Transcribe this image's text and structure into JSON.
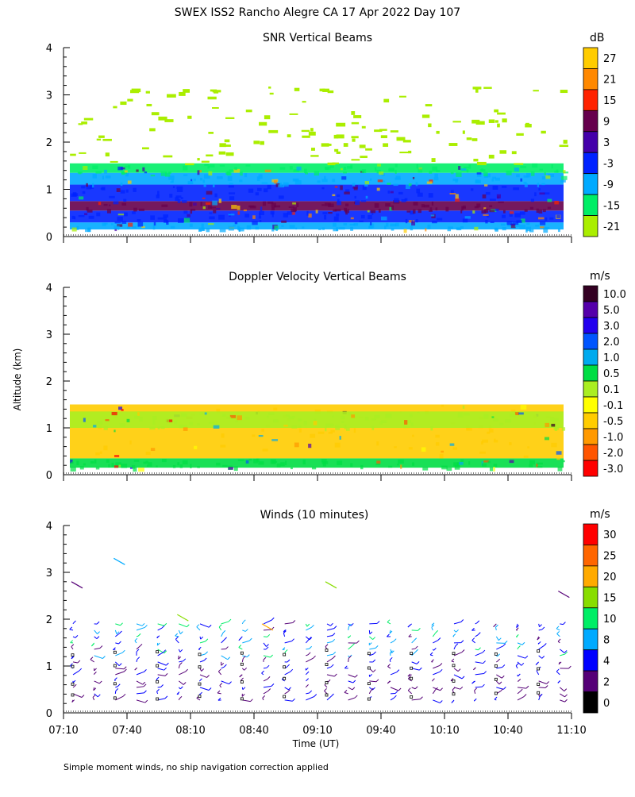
{
  "page_title": "SWEX ISS2 Rancho Alegre CA  17 Apr 2022 Day 107",
  "footnote": "Simple moment winds, no ship navigation correction applied",
  "shared_axes": {
    "ylabel": "Altitude (km)",
    "xlabel": "Time (UT)",
    "y_ticks": [
      "0",
      "1",
      "2",
      "3",
      "4"
    ],
    "x_ticks": [
      "07:10",
      "07:40",
      "08:10",
      "08:40",
      "09:10",
      "09:40",
      "10:10",
      "10:40",
      "11:10"
    ]
  },
  "chart_data": [
    {
      "type": "heatmap",
      "title": "SNR Vertical Beams",
      "ylim": [
        0,
        4
      ],
      "xlim": [
        "07:10",
        "11:10"
      ],
      "colorbar": {
        "unit": "dB",
        "labels": [
          "27",
          "21",
          "15",
          "9",
          "3",
          "-3",
          "-9",
          "-15",
          "-21"
        ],
        "colors": [
          "#ffcc00",
          "#ff8800",
          "#ff2200",
          "#66004d",
          "#4400aa",
          "#0022ff",
          "#00aaff",
          "#00ee66",
          "#aaee00"
        ]
      },
      "layers": [
        {
          "altitude_km": [
            0.15,
            0.3
          ],
          "snr_db": -9
        },
        {
          "altitude_km": [
            0.3,
            0.55
          ],
          "snr_db": -3
        },
        {
          "altitude_km": [
            0.55,
            0.75
          ],
          "snr_db": 9
        },
        {
          "altitude_km": [
            0.75,
            1.1
          ],
          "snr_db": -3
        },
        {
          "altitude_km": [
            1.1,
            1.35
          ],
          "snr_db": -9
        },
        {
          "altitude_km": [
            1.35,
            1.55
          ],
          "snr_db": -15
        },
        {
          "altitude_km": [
            1.55,
            3.2
          ],
          "snr_db": -21
        }
      ]
    },
    {
      "type": "heatmap",
      "title": "Doppler Velocity Vertical Beams",
      "ylim": [
        0,
        4
      ],
      "xlim": [
        "07:10",
        "11:10"
      ],
      "colorbar": {
        "unit": "m/s",
        "labels": [
          "10.0",
          "5.0",
          "3.0",
          "2.0",
          "1.0",
          "0.5",
          "0.1",
          "-0.1",
          "-0.5",
          "-1.0",
          "-2.0",
          "-3.0"
        ],
        "colors": [
          "#330022",
          "#5500aa",
          "#2200ee",
          "#0055ff",
          "#00aaee",
          "#00dd44",
          "#aaee22",
          "#ffff00",
          "#ffcc00",
          "#ff9900",
          "#ff5500",
          "#ff0000"
        ]
      },
      "layers": [
        {
          "altitude_km": [
            0.15,
            0.35
          ],
          "velocity_ms": 0.5
        },
        {
          "altitude_km": [
            0.35,
            1.5
          ],
          "velocity_ms": -0.5
        },
        {
          "altitude_km": [
            1.0,
            1.35
          ],
          "velocity_ms": 0.1
        }
      ]
    },
    {
      "type": "scatter",
      "title": "Winds (10 minutes)",
      "ylim": [
        0,
        4
      ],
      "xlim": [
        "07:10",
        "11:10"
      ],
      "colorbar": {
        "unit": "m/s",
        "labels": [
          "30",
          "25",
          "20",
          "15",
          "10",
          "8",
          "4",
          "2",
          "0"
        ],
        "colors": [
          "#ff0000",
          "#ff6600",
          "#ffaa00",
          "#88dd00",
          "#00ee66",
          "#00aaff",
          "#0000ff",
          "#550077",
          "#000000"
        ]
      },
      "profile_times": [
        "07:10",
        "07:20",
        "07:30",
        "07:40",
        "07:50",
        "08:00",
        "08:10",
        "08:20",
        "08:30",
        "08:40",
        "08:50",
        "09:00",
        "09:10",
        "09:20",
        "09:30",
        "09:40",
        "09:50",
        "10:00",
        "10:10",
        "10:20",
        "10:30",
        "10:40",
        "10:50",
        "11:00"
      ],
      "profile_top_km": 1.9,
      "profile_bottom_km": 0.15
    }
  ]
}
